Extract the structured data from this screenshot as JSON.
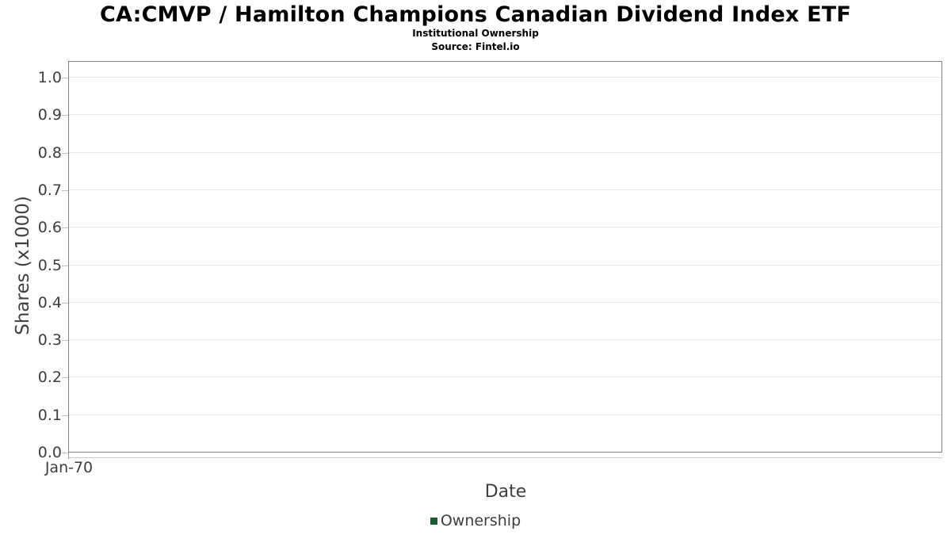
{
  "header": {
    "title": "CA:CMVP / Hamilton Champions Canadian Dividend Index ETF",
    "subtitle": "Institutional Ownership",
    "source": "Source: Fintel.io"
  },
  "chart_data": {
    "type": "line",
    "title": "CA:CMVP / Hamilton Champions Canadian Dividend Index ETF",
    "subtitle": "Institutional Ownership",
    "source": "Source: Fintel.io",
    "xlabel": "Date",
    "ylabel": "Shares (x1000)",
    "x_tick_labels": [
      "Jan-70"
    ],
    "y_tick_labels": [
      "0.0",
      "0.1",
      "0.2",
      "0.3",
      "0.4",
      "0.5",
      "0.6",
      "0.7",
      "0.8",
      "0.9",
      "1.0"
    ],
    "y_tick_values": [
      0,
      0.1,
      0.2,
      0.3,
      0.4,
      0.5,
      0.6,
      0.7,
      0.8,
      0.9,
      1.0
    ],
    "ylim": [
      0,
      1.042
    ],
    "grid": "horizontal",
    "legend_position": "bottom",
    "series": [
      {
        "name": "Ownership",
        "color": "#1e5b32",
        "points": []
      }
    ]
  },
  "legend": {
    "entries": [
      {
        "label": "Ownership",
        "color": "#1e5b32"
      }
    ]
  },
  "colors": {
    "background": "#ffffff",
    "title_text": "#000000",
    "plot_border": "#7f7f7f",
    "gridline": "#e6e6e6",
    "tick_mark": "#c2c2c2",
    "tick_mark_dark": "#9a9a9a",
    "axis_subline": "#c9c9c9",
    "tick_text": "#3d3d3d",
    "axis_label_text": "#3f3f3f",
    "legend_text": "#3c3c3c",
    "legend_marker": "#1e5b32"
  }
}
